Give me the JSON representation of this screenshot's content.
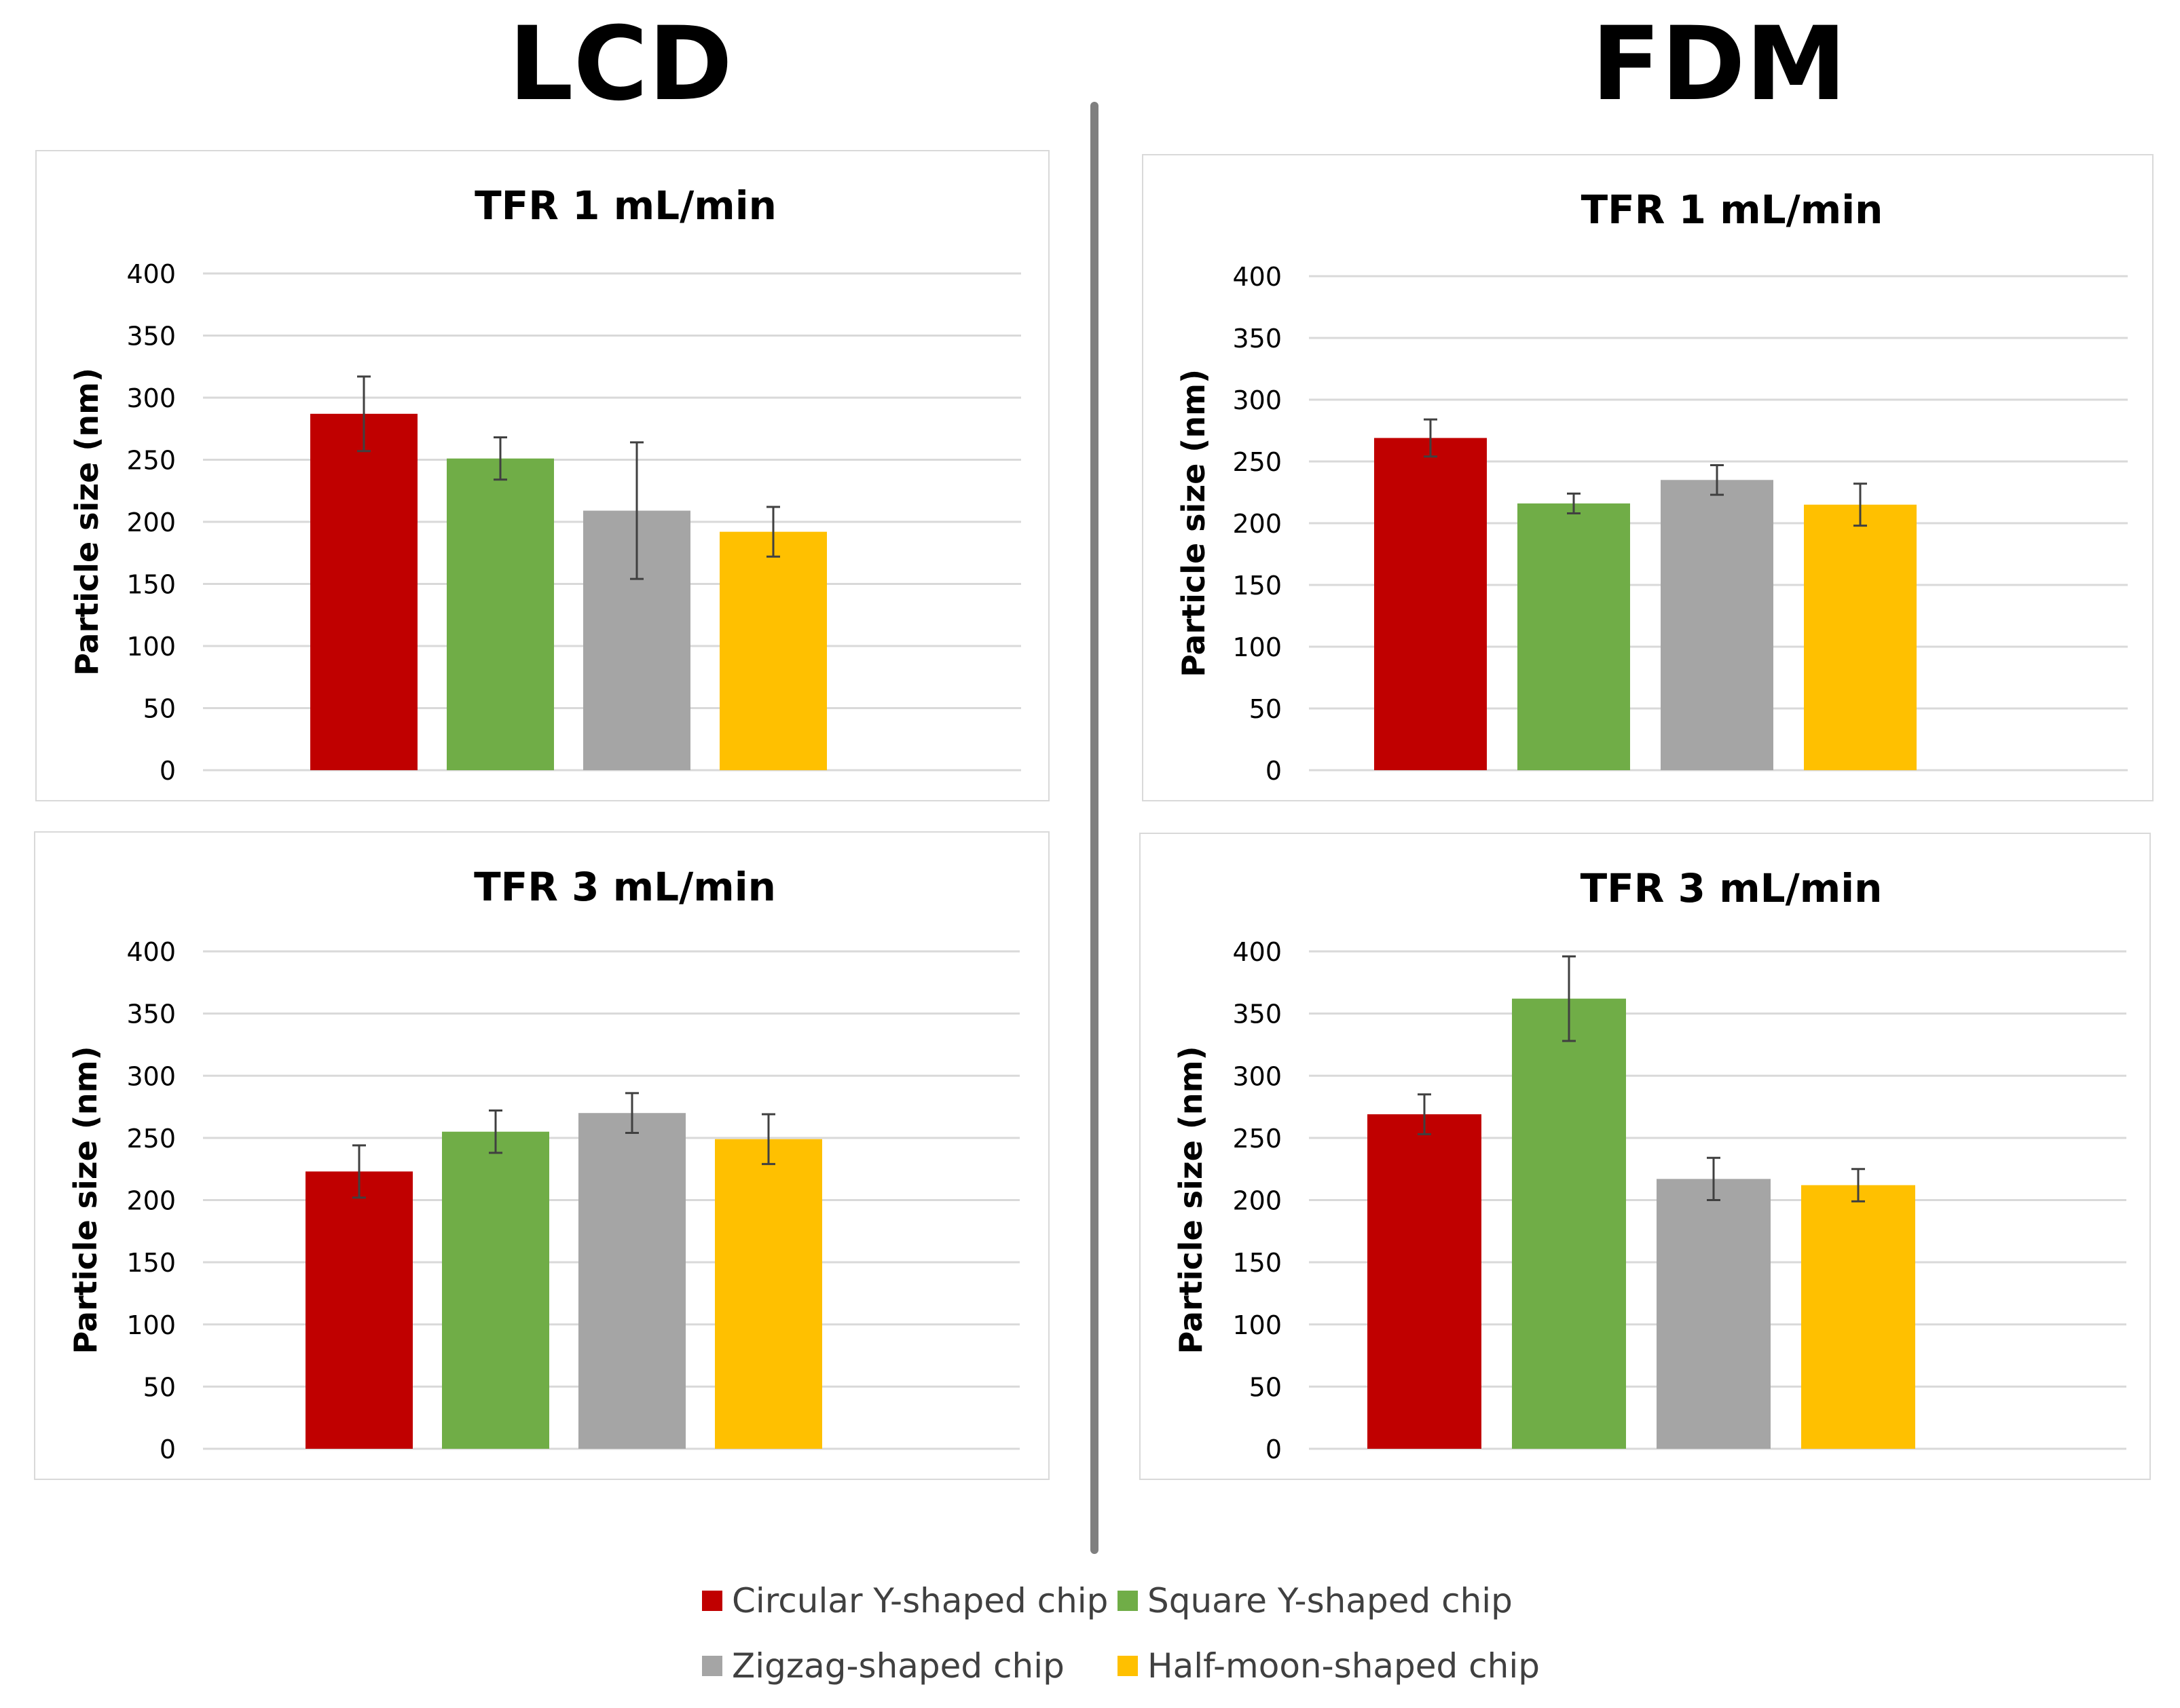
{
  "headings": {
    "left": "LCD",
    "right": "FDM"
  },
  "legend": [
    {
      "label": "Circular Y-shaped chip",
      "color": "#C00000"
    },
    {
      "label": "Square Y-shaped chip",
      "color": "#70AD47"
    },
    {
      "label": "Zigzag-shaped chip",
      "color": "#A5A5A5"
    },
    {
      "label": "Half-moon-shaped chip",
      "color": "#FFC000"
    }
  ],
  "chart_data": [
    {
      "type": "bar",
      "group": "LCD",
      "title": "TFR 1 mL/min",
      "ylabel": "Particle size (nm)",
      "ylim": [
        0,
        400
      ],
      "yticks": [
        "0",
        "50",
        "100",
        "150",
        "200",
        "250",
        "300",
        "350",
        "400"
      ],
      "categories": [
        "Circular Y-shaped chip",
        "Square Y-shaped chip",
        "Zigzag-shaped chip",
        "Half-moon-shaped chip"
      ],
      "values": [
        287,
        251,
        209,
        192
      ],
      "errors": [
        30,
        17,
        55,
        20
      ]
    },
    {
      "type": "bar",
      "group": "FDM",
      "title": "TFR 1 mL/min",
      "ylabel": "Particle size (nm)",
      "ylim": [
        0,
        400
      ],
      "yticks": [
        "0",
        "50",
        "100",
        "150",
        "200",
        "250",
        "300",
        "350",
        "400"
      ],
      "categories": [
        "Circular Y-shaped chip",
        "Square Y-shaped chip",
        "Zigzag-shaped chip",
        "Half-moon-shaped chip"
      ],
      "values": [
        269,
        216,
        235,
        215
      ],
      "errors": [
        15,
        8,
        12,
        17
      ]
    },
    {
      "type": "bar",
      "group": "LCD",
      "title": "TFR 3 mL/min",
      "ylabel": "Particle size (nm)",
      "ylim": [
        0,
        400
      ],
      "yticks": [
        "0",
        "50",
        "100",
        "150",
        "200",
        "250",
        "300",
        "350",
        "400"
      ],
      "categories": [
        "Circular Y-shaped chip",
        "Square Y-shaped chip",
        "Zigzag-shaped chip",
        "Half-moon-shaped chip"
      ],
      "values": [
        223,
        255,
        270,
        249
      ],
      "errors": [
        21,
        17,
        16,
        20
      ]
    },
    {
      "type": "bar",
      "group": "FDM",
      "title": "TFR 3 mL/min",
      "ylabel": "Particle size (nm)",
      "ylim": [
        0,
        400
      ],
      "yticks": [
        "0",
        "50",
        "100",
        "150",
        "200",
        "250",
        "300",
        "350",
        "400"
      ],
      "categories": [
        "Circular Y-shaped chip",
        "Square Y-shaped chip",
        "Zigzag-shaped chip",
        "Half-moon-shaped chip"
      ],
      "values": [
        269,
        362,
        217,
        212
      ],
      "errors": [
        16,
        34,
        17,
        13
      ]
    }
  ]
}
